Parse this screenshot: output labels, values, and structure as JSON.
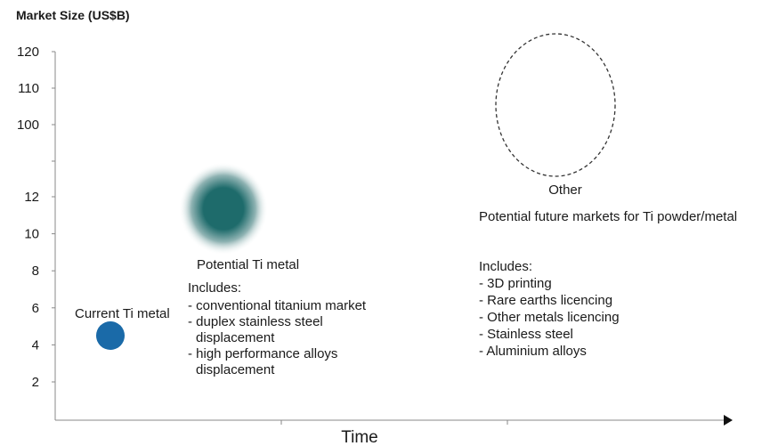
{
  "chart_data": {
    "type": "bubble",
    "title": "Market Size (US$B)",
    "xlabel": "Time",
    "ylabel": "Market Size (US$B)",
    "y_ticks": [
      "2",
      "4",
      "6",
      "8",
      "10",
      "12",
      "100",
      "110",
      "120"
    ],
    "y_axis_note": "broken axis: lower section 2–12, upper section 100–120",
    "grid": false,
    "colors": {
      "current": "#1a6aa8",
      "potential": "#1e6b6b",
      "other_outline": "#333333",
      "axis": "#888888"
    },
    "series": [
      {
        "name": "Current Ti metal",
        "y": 4.5,
        "includes_title": "",
        "includes": []
      },
      {
        "name": "Potential Ti metal",
        "y": 11.5,
        "includes_title": "Includes:",
        "includes": [
          "- conventional titanium market",
          "- duplex stainless steel",
          "  displacement",
          "- high performance alloys",
          "  displacement"
        ]
      },
      {
        "name": "Other",
        "y": 105,
        "subtitle": "Potential future markets for Ti powder/metal",
        "includes_title": "Includes:",
        "includes": [
          "- 3D printing",
          "- Rare earths licencing",
          "- Other metals licencing",
          "- Stainless steel",
          "- Aluminium alloys"
        ]
      }
    ]
  }
}
